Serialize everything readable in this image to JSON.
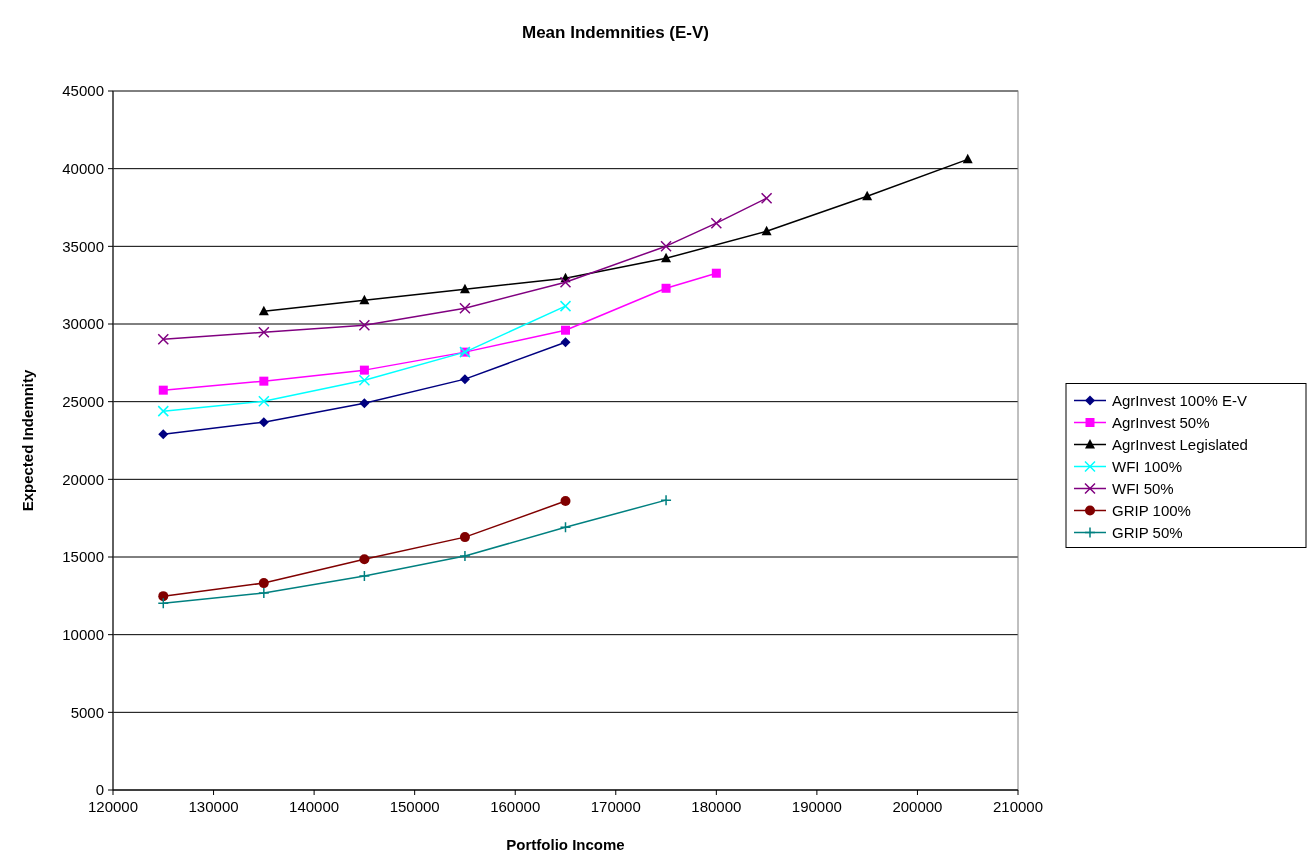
{
  "chart_data": {
    "type": "line",
    "title": "Mean Indemnities (E-V)",
    "xlabel": "Portfolio Income",
    "ylabel": "Expected Indemnity",
    "xlim": [
      120000,
      210000
    ],
    "xticks": [
      120000,
      130000,
      140000,
      150000,
      160000,
      170000,
      180000,
      190000,
      200000,
      210000
    ],
    "ylim": [
      0,
      45000
    ],
    "yticks": [
      0,
      5000,
      10000,
      15000,
      20000,
      25000,
      30000,
      35000,
      40000,
      45000
    ],
    "grid": "y",
    "legend": "right",
    "series": [
      {
        "name": "AgrInvest 100% E-V",
        "color": "#000080",
        "marker": "diamond",
        "x": [
          125000,
          135000,
          145000,
          155000,
          165000
        ],
        "values": [
          22900,
          23680,
          24900,
          26450,
          28830
        ]
      },
      {
        "name": "AgrInvest 50%",
        "color": "#ff00ff",
        "marker": "square",
        "x": [
          125000,
          135000,
          145000,
          155000,
          165000,
          175000,
          180000
        ],
        "values": [
          25740,
          26320,
          27030,
          28190,
          29600,
          32300,
          33270
        ]
      },
      {
        "name": "AgrInvest Legislated",
        "color": "#000000",
        "marker": "triangle",
        "x": [
          135000,
          145000,
          155000,
          165000,
          175000,
          185000,
          195000,
          205000
        ],
        "values": [
          30820,
          31530,
          32240,
          32950,
          34230,
          35970,
          38220,
          40600
        ]
      },
      {
        "name": "WFI 100%",
        "color": "#00ffff",
        "marker": "cross",
        "x": [
          125000,
          135000,
          145000,
          155000,
          165000
        ],
        "values": [
          24390,
          25030,
          26380,
          28190,
          31150
        ]
      },
      {
        "name": "WFI 50%",
        "color": "#800080",
        "marker": "cross",
        "x": [
          125000,
          135000,
          145000,
          155000,
          165000,
          175000,
          180000,
          185000
        ],
        "values": [
          29020,
          29470,
          29920,
          31020,
          32690,
          35010,
          36490,
          38100
        ]
      },
      {
        "name": "GRIP 100%",
        "color": "#800000",
        "marker": "circle",
        "x": [
          125000,
          135000,
          145000,
          155000,
          165000
        ],
        "values": [
          12480,
          13320,
          14860,
          16280,
          18600
        ]
      },
      {
        "name": "GRIP 50%",
        "color": "#008080",
        "marker": "plus",
        "x": [
          125000,
          135000,
          145000,
          155000,
          165000,
          175000
        ],
        "values": [
          12030,
          12680,
          13770,
          15060,
          16920,
          18660
        ]
      }
    ]
  }
}
